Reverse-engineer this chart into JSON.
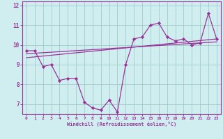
{
  "xlabel": "Windchill (Refroidissement éolien,°C)",
  "xlim": [
    -0.5,
    23.5
  ],
  "ylim": [
    6.5,
    12.2
  ],
  "yticks": [
    7,
    8,
    9,
    10,
    11,
    12
  ],
  "xticks": [
    0,
    1,
    2,
    3,
    4,
    5,
    6,
    7,
    8,
    9,
    10,
    11,
    12,
    13,
    14,
    15,
    16,
    17,
    18,
    19,
    20,
    21,
    22,
    23
  ],
  "bg_color": "#d0eef0",
  "grid_color": "#a0ccc8",
  "line_color": "#993399",
  "border_color": "#993399",
  "line1": [
    9.7,
    9.7,
    8.9,
    9.0,
    8.2,
    8.3,
    8.3,
    7.1,
    6.8,
    6.7,
    7.2,
    6.6,
    9.0,
    10.3,
    10.4,
    11.0,
    11.1,
    10.4,
    10.2,
    10.3,
    10.0,
    10.1,
    11.6,
    10.3
  ],
  "line2_x": [
    0,
    23
  ],
  "line2_y": [
    9.55,
    10.15
  ],
  "line3_x": [
    0,
    23
  ],
  "line3_y": [
    9.35,
    10.3
  ]
}
